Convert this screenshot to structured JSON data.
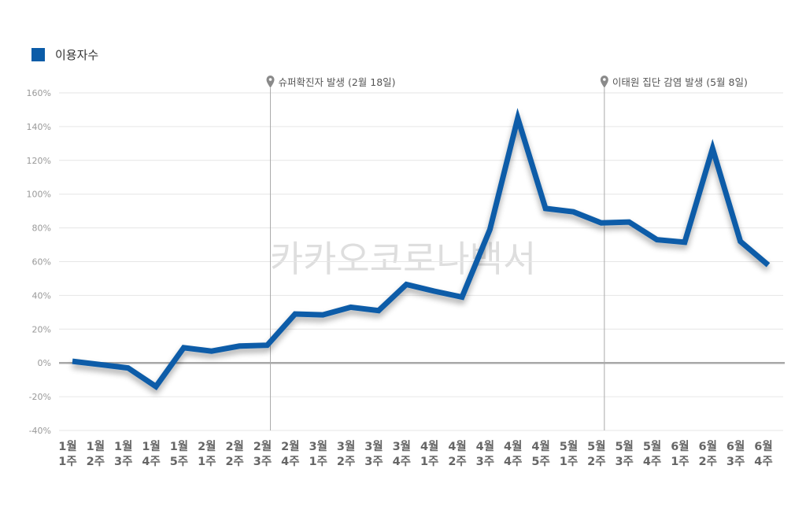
{
  "chart_data": {
    "type": "line",
    "legend": {
      "label": "이용자수",
      "placement": "top-left"
    },
    "watermark": "카카오코로나백서",
    "annotations": [
      {
        "label": "슈퍼확진자 발생 (2월 18일)",
        "x_index": 7,
        "icon": "map-pin-icon"
      },
      {
        "label": "이태원 집단 감염 발생 (5월 8일)",
        "x_index": 19,
        "icon": "map-pin-icon"
      }
    ],
    "x_labels": [
      [
        "1월",
        "1주"
      ],
      [
        "1월",
        "2주"
      ],
      [
        "1월",
        "3주"
      ],
      [
        "1월",
        "4주"
      ],
      [
        "1월",
        "5주"
      ],
      [
        "2월",
        "1주"
      ],
      [
        "2월",
        "2주"
      ],
      [
        "2월",
        "3주"
      ],
      [
        "2월",
        "4주"
      ],
      [
        "3월",
        "1주"
      ],
      [
        "3월",
        "2주"
      ],
      [
        "3월",
        "3주"
      ],
      [
        "3월",
        "4주"
      ],
      [
        "4월",
        "1주"
      ],
      [
        "4월",
        "2주"
      ],
      [
        "4월",
        "3주"
      ],
      [
        "4월",
        "4주"
      ],
      [
        "4월",
        "5주"
      ],
      [
        "5월",
        "1주"
      ],
      [
        "5월",
        "2주"
      ],
      [
        "5월",
        "3주"
      ],
      [
        "5월",
        "4주"
      ],
      [
        "6월",
        "1주"
      ],
      [
        "6월",
        "2주"
      ],
      [
        "6월",
        "3주"
      ],
      [
        "6월",
        "4주"
      ]
    ],
    "series": [
      {
        "name": "이용자수",
        "color": "#0B5CA8",
        "values": [
          1,
          -1,
          -3,
          -14,
          9,
          7,
          10,
          10.5,
          29,
          28.5,
          33,
          31,
          46.5,
          42.5,
          39,
          79,
          145,
          91.5,
          89.5,
          83,
          83.5,
          73,
          71.5,
          127,
          72,
          58
        ]
      }
    ],
    "y_ticks": [
      "160%",
      "140%",
      "120%",
      "100%",
      "80%",
      "60%",
      "40%",
      "20%",
      "0%",
      "-20%",
      "-40%"
    ],
    "ylim": [
      -40,
      160
    ],
    "grid": true,
    "colors": {
      "line": "#0B5CA8",
      "legend_marker": "#0B5CA8",
      "grid": "#E6E6E6",
      "zero_line": "#A8A8A8",
      "annotation_line": "#AAAAAA",
      "watermark": "#D9D9D9"
    }
  }
}
